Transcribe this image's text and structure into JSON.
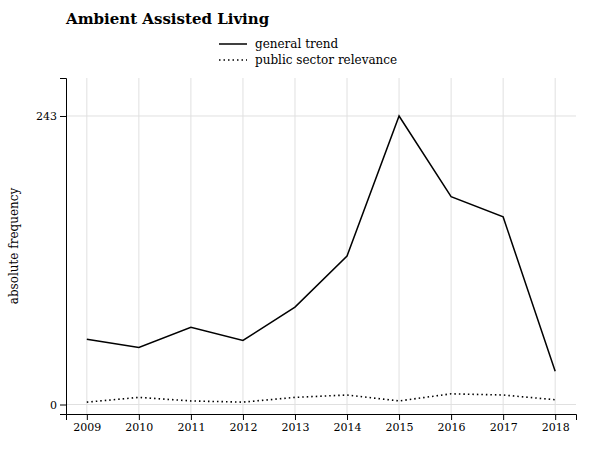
{
  "chart_data": {
    "type": "line",
    "title": "Ambient Assisted Living",
    "ylabel": "absolute frequency",
    "x": [
      2009,
      2010,
      2011,
      2012,
      2013,
      2014,
      2015,
      2016,
      2017,
      2018
    ],
    "series": [
      {
        "name": "general trend",
        "color": "#000000",
        "line_style": "solid",
        "values": [
          55,
          48,
          65,
          54,
          82,
          125,
          243,
          175,
          158,
          28
        ]
      },
      {
        "name": "public sector relevance",
        "color": "#000000",
        "line_style": "dotted",
        "values": [
          2,
          6,
          3,
          2,
          6,
          8,
          3,
          9,
          8,
          4
        ]
      }
    ],
    "xlim": [
      2008.6,
      2018.4
    ],
    "xticks": [
      2009,
      2010,
      2011,
      2012,
      2013,
      2014,
      2015,
      2016,
      2017,
      2018
    ],
    "ylim": [
      -8,
      275
    ],
    "yticks": [
      0,
      243
    ],
    "grid": true,
    "legend": "top"
  }
}
